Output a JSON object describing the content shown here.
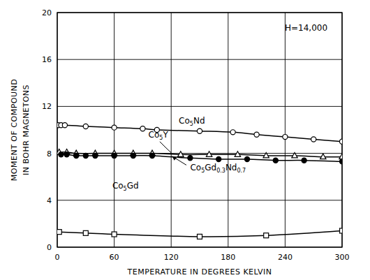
{
  "chart_data": {
    "type": "line",
    "annotation": "H=14,000",
    "x_label": "TEMPERATURE IN DEGREES KELVIN",
    "y_label": [
      "MOMENT OF COMPOUND",
      "IN BOHR MAGNETONS"
    ],
    "xlim": [
      0,
      300
    ],
    "xticks": [
      0,
      60,
      120,
      180,
      240,
      300
    ],
    "ylim": [
      0,
      20
    ],
    "yticks": [
      0,
      4,
      8,
      12,
      16,
      20
    ],
    "grid": true,
    "series": [
      {
        "name": "Co5Nd",
        "color": "#000000",
        "marker": "circle_open",
        "line_style": "solid",
        "x": [
          1,
          4,
          8,
          30,
          60,
          90,
          105,
          150,
          185,
          210,
          240,
          270,
          300
        ],
        "values": [
          10.4,
          10.4,
          10.4,
          10.3,
          10.2,
          10.1,
          10.0,
          9.9,
          9.8,
          9.6,
          9.4,
          9.2,
          9.0
        ]
      },
      {
        "name": "Co5Y",
        "color": "#000000",
        "marker": "triangle_open",
        "line_style": "solid",
        "x": [
          2,
          10,
          20,
          40,
          60,
          80,
          100,
          130,
          160,
          190,
          220,
          250,
          280,
          300
        ],
        "values": [
          8.1,
          8.1,
          8.0,
          8.0,
          8.0,
          8.0,
          8.0,
          7.9,
          7.9,
          7.9,
          7.8,
          7.8,
          7.7,
          7.7
        ]
      },
      {
        "name": "Co5Gd0.3Nd0.7",
        "color": "#000000",
        "marker": "circle_filled",
        "line_style": "solid",
        "x": [
          4,
          10,
          20,
          30,
          40,
          60,
          80,
          100,
          140,
          170,
          200,
          230,
          260,
          300
        ],
        "values": [
          7.9,
          7.9,
          7.8,
          7.8,
          7.8,
          7.8,
          7.8,
          7.8,
          7.6,
          7.5,
          7.5,
          7.4,
          7.4,
          7.3
        ]
      },
      {
        "name": "Co5Gd",
        "color": "#000000",
        "marker": "square_open",
        "line_style": "solid",
        "x": [
          2,
          30,
          60,
          150,
          220,
          300
        ],
        "values": [
          1.3,
          1.2,
          1.1,
          0.9,
          1.0,
          1.4
        ]
      }
    ]
  }
}
